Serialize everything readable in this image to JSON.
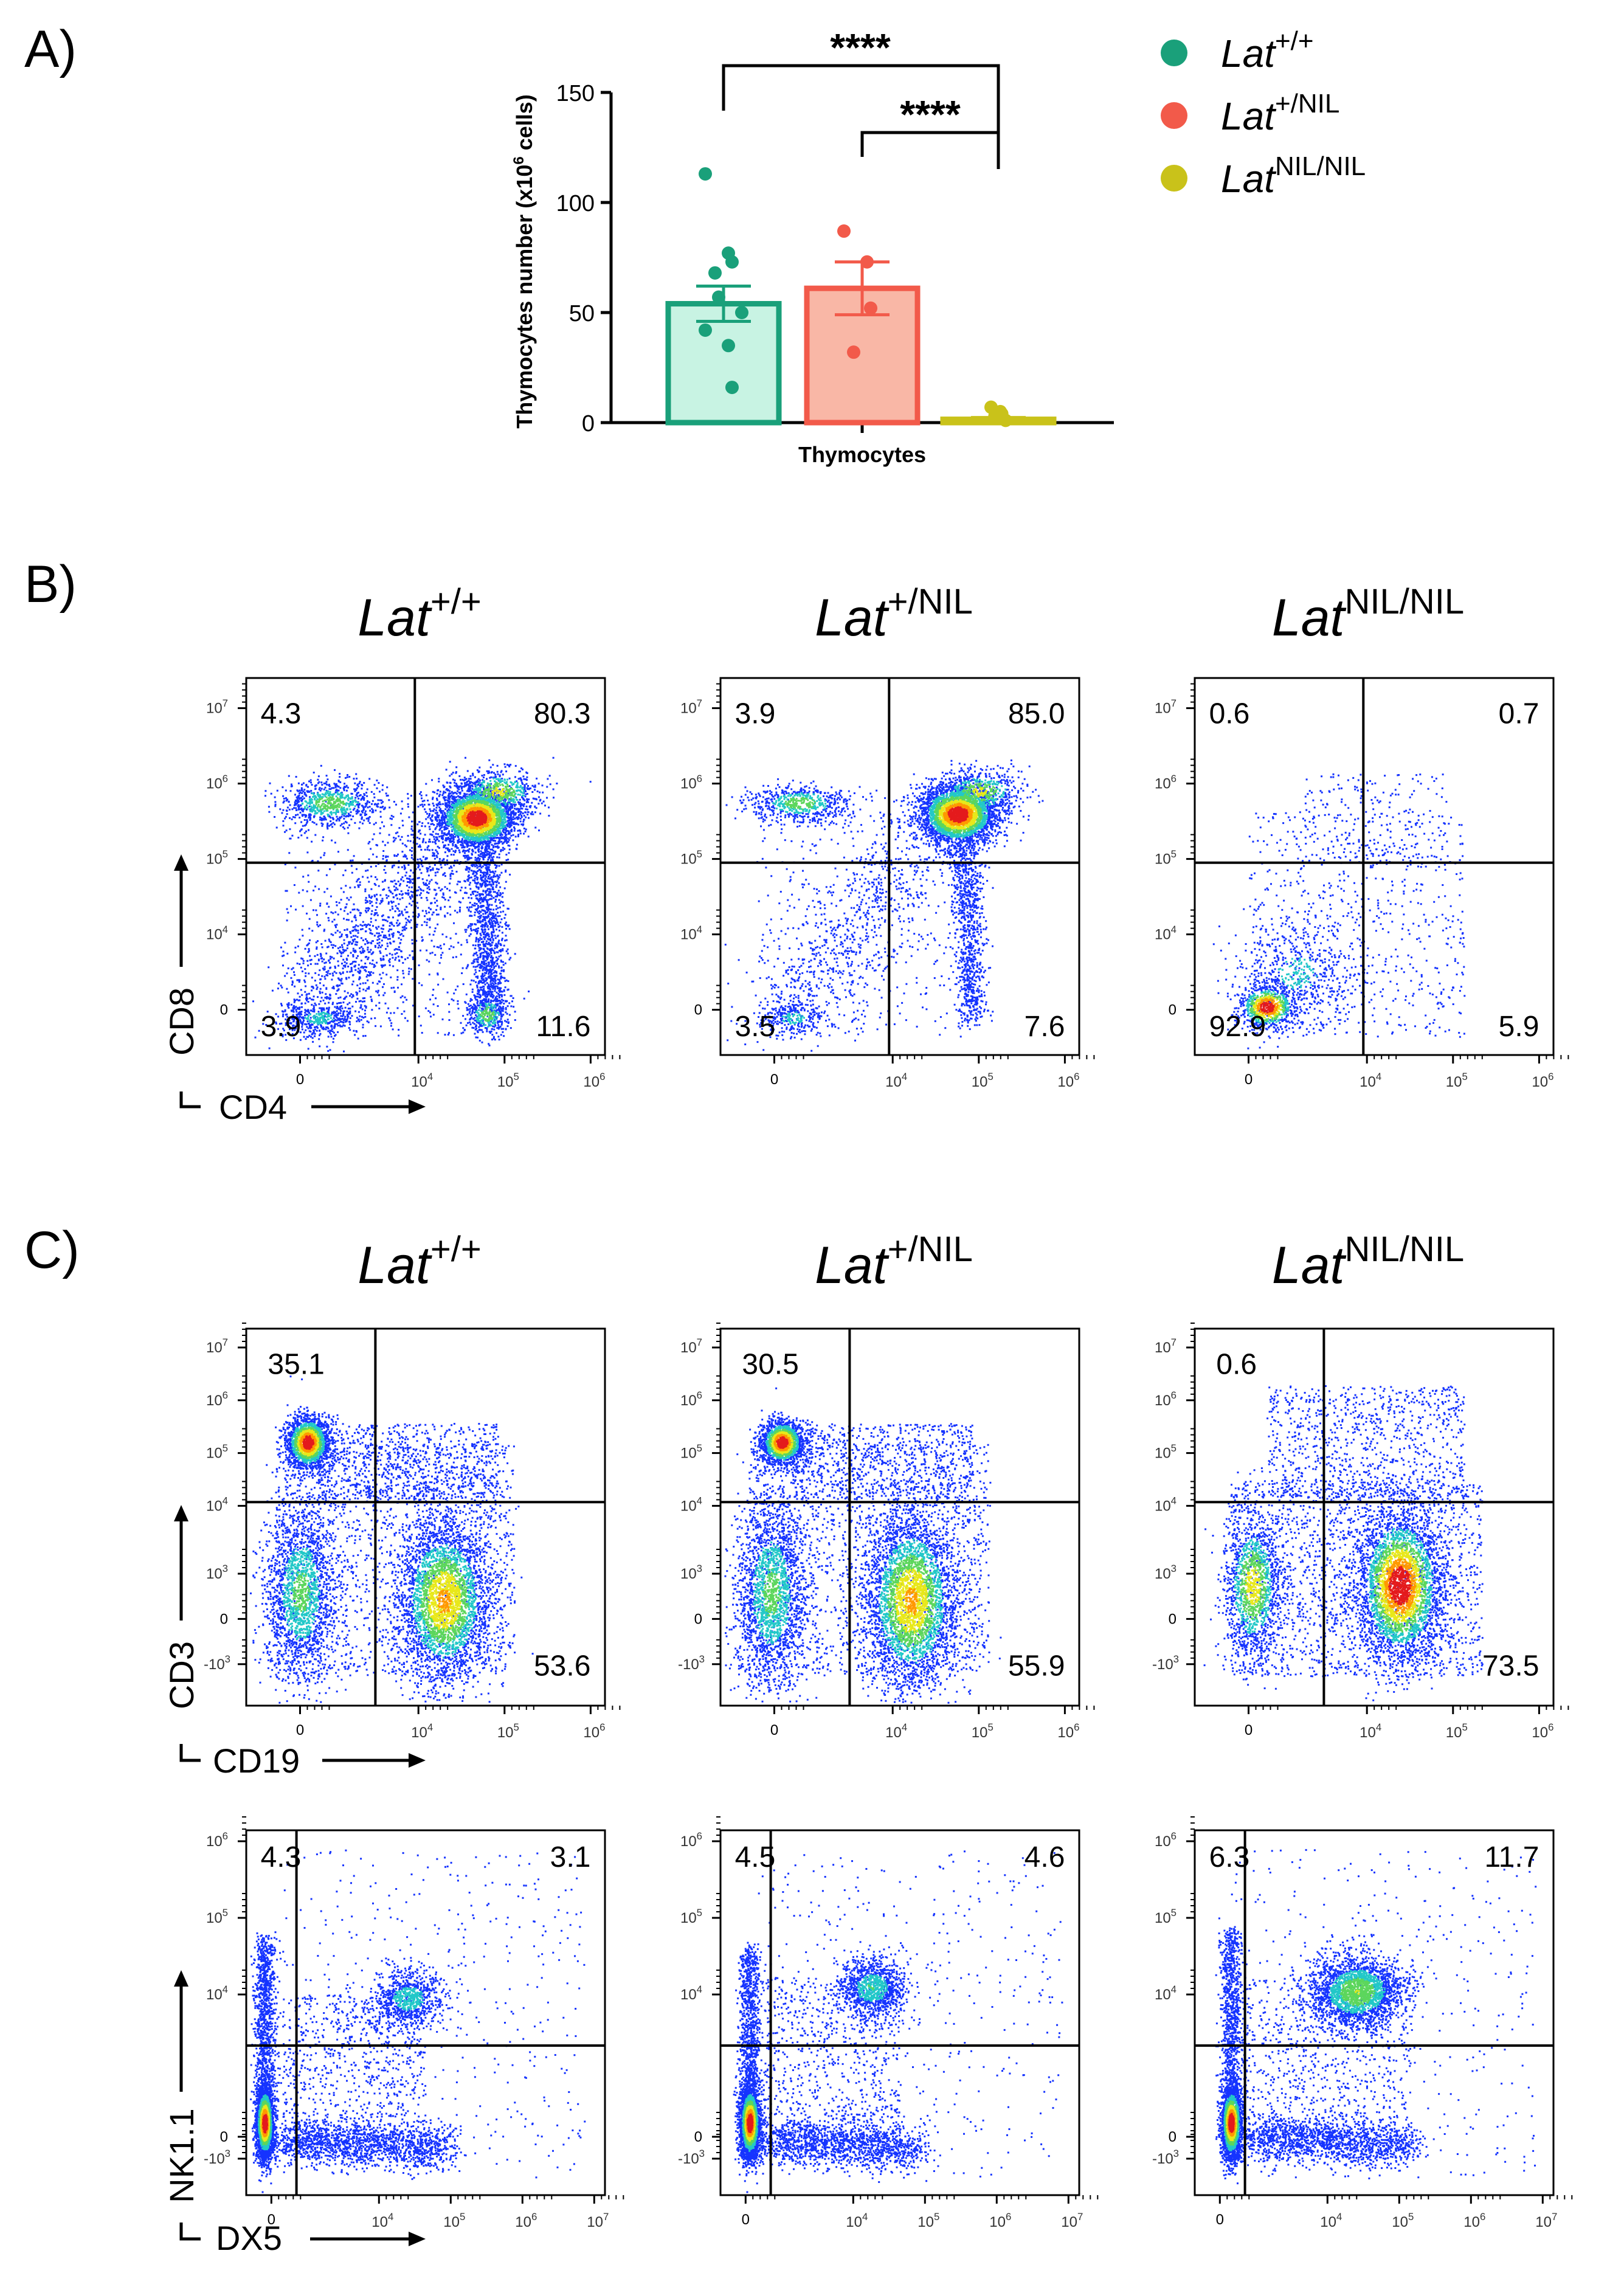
{
  "colors": {
    "wt": "#1aa07a",
    "het": "#f25a4a",
    "nil": "#c9c21a",
    "wt_fill": "#c8f3e3",
    "het_fill": "#f9b7a6"
  },
  "panel_a": {
    "label": "A)",
    "significance": [
      "****",
      "****"
    ],
    "legend": [
      {
        "italic": "Lat",
        "sup": "+/+",
        "color_key": "wt"
      },
      {
        "italic": "Lat",
        "sup": "+/NIL",
        "color_key": "het"
      },
      {
        "italic": "Lat",
        "sup": "NIL/NIL",
        "color_key": "nil"
      }
    ]
  },
  "chart_data": {
    "type": "bar",
    "title": "",
    "xlabel": "Thymocytes",
    "ylabel": "Thymocytes number (x10",
    "ylabel_sup": "6",
    "ylabel_end": " cells)",
    "ylim": [
      0,
      150
    ],
    "yticks": [
      "0",
      "50",
      "100",
      "150"
    ],
    "categories": [
      "Lat+/+",
      "Lat+/NIL",
      "LatNIL/NIL"
    ],
    "values": [
      54,
      61,
      1.5
    ],
    "sem": [
      8,
      12,
      0.8
    ],
    "points": [
      [
        113,
        77,
        73,
        68,
        57,
        50,
        42,
        35,
        16
      ],
      [
        87,
        73,
        52,
        32
      ],
      [
        7,
        5,
        4,
        3,
        2,
        1
      ]
    ]
  },
  "panel_b": {
    "label": "B)",
    "axis_y": "CD8",
    "axis_x": "CD4",
    "plots": [
      {
        "genotype_main": "Lat",
        "genotype_sup": "+/+",
        "q": [
          "4.3",
          "80.3",
          "3.9",
          "11.6"
        ]
      },
      {
        "genotype_main": "Lat",
        "genotype_sup": "+/NIL",
        "q": [
          "3.9",
          "85.0",
          "3.5",
          "7.6"
        ]
      },
      {
        "genotype_main": "Lat",
        "genotype_sup": "NIL/NIL",
        "q": [
          "0.6",
          "0.7",
          "92.9",
          "5.9"
        ]
      }
    ]
  },
  "panel_c": {
    "label": "C)",
    "row1_axis_y": "CD3",
    "row1_axis_x": "CD19",
    "row2_axis_y": "NK1.1",
    "row2_axis_x": "DX5",
    "plots_row1": [
      {
        "genotype_main": "Lat",
        "genotype_sup": "+/+",
        "q": [
          "35.1",
          "53.6"
        ]
      },
      {
        "genotype_main": "Lat",
        "genotype_sup": "+/NIL",
        "q": [
          "30.5",
          "55.9"
        ]
      },
      {
        "genotype_main": "Lat",
        "genotype_sup": "NIL/NIL",
        "q": [
          "0.6",
          "73.5"
        ]
      }
    ],
    "plots_row2": [
      {
        "q": [
          "4.3",
          "3.1"
        ]
      },
      {
        "q": [
          "4.5",
          "4.6"
        ]
      },
      {
        "q": [
          "6.3",
          "11.7"
        ]
      }
    ]
  },
  "ticks": {
    "y7": [
      "0",
      "10",
      "10",
      "10",
      "10"
    ],
    "x6": [
      "0",
      "10",
      "10",
      "10"
    ],
    "neg": "-10",
    "e3": "3",
    "e4": "4",
    "e5": "5",
    "e6": "6",
    "e7": "7"
  }
}
